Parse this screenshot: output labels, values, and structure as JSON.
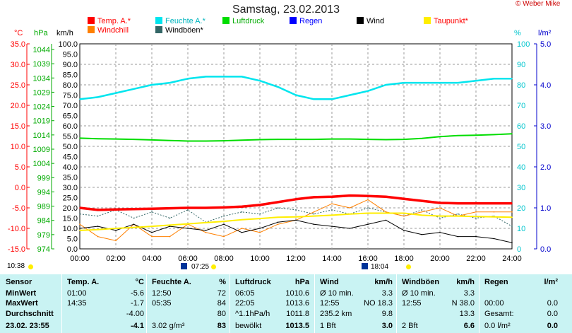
{
  "title": "Samstag, 23.02.2013",
  "copyright": "© Weber Mike",
  "colors": {
    "temp": "#ff0000",
    "humidity": "#00e5ee",
    "pressure": "#00dd00",
    "rain": "#0000ff",
    "wind": "#000000",
    "dewpoint": "#ffee00",
    "windchill": "#ff8000",
    "gust": "#336666",
    "grid": "#999999",
    "stats_bg": "#c9f3f3"
  },
  "legend": [
    {
      "label": "Temp. A.*",
      "color": "#ff0000"
    },
    {
      "label": "Feuchte A.*",
      "color": "#00e5ee"
    },
    {
      "label": "Luftdruck",
      "color": "#00dd00"
    },
    {
      "label": "Regen",
      "color": "#0000ff"
    },
    {
      "label": "Wind",
      "color": "#000000"
    },
    {
      "label": "Taupunkt*",
      "color": "#ffee00"
    },
    {
      "label": "Windchill",
      "color": "#ff8000"
    },
    {
      "label": "Windböen*",
      "color": "#336666"
    }
  ],
  "axes": {
    "temp": {
      "unit": "°C",
      "ticks": [
        "35.0",
        "30.0",
        "25.0",
        "20.0",
        "15.0",
        "10.0",
        "5.0",
        "0.0",
        "-5.0",
        "-10.0",
        "-15.0"
      ]
    },
    "pressure": {
      "unit": "hPa",
      "ticks": [
        "1044",
        "1039",
        "1034",
        "1029",
        "1024",
        "1019",
        "1014",
        "1009",
        "1004",
        "999",
        "994",
        "989",
        "984",
        "979",
        "974"
      ]
    },
    "wind": {
      "unit": "km/h",
      "ticks": [
        "100.0",
        "95.0",
        "90.0",
        "85.0",
        "80.0",
        "75.0",
        "70.0",
        "65.0",
        "60.0",
        "55.0",
        "50.0",
        "45.0",
        "40.0",
        "35.0",
        "30.0",
        "25.0",
        "20.0",
        "15.0",
        "10.0",
        "5.0",
        "0.0"
      ]
    },
    "humidity": {
      "unit": "%",
      "ticks": [
        "100",
        "90",
        "80",
        "70",
        "60",
        "50",
        "40",
        "30",
        "20",
        "10",
        "0"
      ]
    },
    "rain": {
      "unit": "l/m²",
      "ticks": [
        "5.0",
        "4.0",
        "3.0",
        "2.0",
        "1.0",
        "0.0"
      ]
    },
    "time": {
      "ticks": [
        "00:00",
        "02:00",
        "04:00",
        "06:00",
        "08:00",
        "10:00",
        "12:00",
        "14:00",
        "16:00",
        "18:00",
        "20:00",
        "22:00",
        "24:00"
      ]
    }
  },
  "sun": {
    "time_label": "10:38",
    "sunrise": "07:25",
    "sunset": "18:04",
    "marker_06": "06:00",
    "marker_16": "16:00"
  },
  "chart_data": {
    "type": "line",
    "x": [
      "00:00",
      "01:00",
      "02:00",
      "03:00",
      "04:00",
      "05:00",
      "06:00",
      "07:00",
      "08:00",
      "09:00",
      "10:00",
      "11:00",
      "12:00",
      "13:00",
      "14:00",
      "15:00",
      "16:00",
      "17:00",
      "18:00",
      "19:00",
      "20:00",
      "21:00",
      "22:00",
      "23:00",
      "24:00"
    ],
    "xlim": [
      "00:00",
      "24:00"
    ],
    "series": [
      {
        "name": "Temp. A.*",
        "axis": "temp",
        "values": [
          -5.0,
          -5.5,
          -5.4,
          -5.3,
          -5.2,
          -5.1,
          -5.0,
          -5.0,
          -4.9,
          -4.7,
          -4.3,
          -3.6,
          -2.9,
          -2.4,
          -2.3,
          -2.0,
          -2.1,
          -2.3,
          -2.8,
          -3.3,
          -3.8,
          -3.9,
          -3.9,
          -3.9,
          -3.9
        ]
      },
      {
        "name": "Feuchte A.*",
        "axis": "humidity",
        "values": [
          73,
          74,
          76,
          78,
          80,
          81,
          83,
          84,
          84,
          84,
          82,
          79,
          75,
          73,
          73,
          75,
          77,
          80,
          81,
          81,
          81,
          81,
          82,
          83,
          83
        ]
      },
      {
        "name": "Luftdruck",
        "axis": "pressure",
        "values": [
          1011.8,
          1011.6,
          1011.5,
          1011.4,
          1011.2,
          1011.0,
          1010.8,
          1010.8,
          1010.9,
          1011.1,
          1011.3,
          1011.4,
          1011.4,
          1011.4,
          1011.5,
          1011.5,
          1011.4,
          1011.3,
          1011.4,
          1011.7,
          1012.3,
          1012.7,
          1012.8,
          1013.0,
          1013.3
        ]
      },
      {
        "name": "Taupunkt*",
        "axis": "temp",
        "values": [
          -10.5,
          -10.3,
          -10.0,
          -9.8,
          -9.5,
          -9.2,
          -8.9,
          -8.6,
          -8.3,
          -7.9,
          -7.6,
          -7.3,
          -7.2,
          -7.0,
          -6.8,
          -6.5,
          -6.3,
          -6.3,
          -6.3,
          -6.8,
          -7.0,
          -7.0,
          -7.1,
          -7.2,
          -7.3
        ]
      },
      {
        "name": "Windchill",
        "axis": "temp",
        "values": [
          -9,
          -12,
          -13,
          -9,
          -12,
          -12,
          -9,
          -11,
          -12,
          -10,
          -11,
          -9,
          -8,
          -6,
          -4,
          -5,
          -3,
          -6,
          -7,
          -6,
          -5,
          -7,
          -6,
          -6,
          -6
        ]
      },
      {
        "name": "Wind",
        "axis": "wind",
        "values": [
          10,
          11,
          9,
          12,
          8,
          11,
          10,
          9,
          12,
          8,
          10,
          13,
          14,
          12,
          11,
          10,
          12,
          14,
          9,
          7,
          8,
          6,
          6,
          5,
          3
        ]
      },
      {
        "name": "Windböen*",
        "axis": "wind",
        "values": [
          17,
          16,
          19,
          15,
          18,
          15,
          19,
          13,
          16,
          18,
          17,
          20,
          19,
          17,
          19,
          17,
          20,
          18,
          16,
          19,
          15,
          17,
          15,
          16,
          11
        ]
      }
    ],
    "ylim": {
      "temp": [
        -15,
        35
      ],
      "humidity": [
        0,
        100
      ],
      "pressure": [
        974,
        1044
      ],
      "wind": [
        0,
        100
      ],
      "rain": [
        0,
        5
      ]
    }
  },
  "stats": {
    "headers": {
      "sensor": "Sensor",
      "temp": "Temp. A.",
      "temp_unit": "°C",
      "hum": "Feuchte A.",
      "hum_unit": "%",
      "press": "Luftdruck",
      "press_unit": "hPa",
      "wind": "Wind",
      "wind_unit": "km/h",
      "gust": "Windböen",
      "gust_unit": "km/h",
      "rain": "Regen",
      "rain_unit": "l/m²"
    },
    "row_labels": [
      "MinWert",
      "MaxWert",
      "Durchschnitt",
      "23.02. 23:55"
    ],
    "temp": [
      [
        "01:00",
        "-5.6"
      ],
      [
        "14:35",
        "-1.7"
      ],
      [
        "",
        "-4.00"
      ],
      [
        "",
        "-4.1"
      ]
    ],
    "hum": [
      [
        "12:50",
        "72"
      ],
      [
        "05:35",
        "84"
      ],
      [
        "",
        "80"
      ],
      [
        "3.02 g/m³",
        "83"
      ]
    ],
    "press": [
      [
        "06:05",
        "1010.6"
      ],
      [
        "22:05",
        "1013.6"
      ],
      [
        "^1.1hPa/h",
        "1011.8"
      ],
      [
        "bewölkt",
        "1013.5"
      ]
    ],
    "wind": [
      [
        "Ø 10 min.",
        "3.3"
      ],
      [
        "12:55",
        "NO 18.3"
      ],
      [
        "235.2 km",
        "9.8"
      ],
      [
        "1 Bft",
        "3.0"
      ]
    ],
    "gust": [
      [
        "Ø 10 min.",
        "3.3"
      ],
      [
        "12:55",
        "N 38.0"
      ],
      [
        "",
        "13.3"
      ],
      [
        "2 Bft",
        "6.6"
      ]
    ],
    "rain": [
      [
        "",
        ""
      ],
      [
        "00:00",
        "0.0"
      ],
      [
        "Gesamt:",
        "0.0"
      ],
      [
        "0.0 l/m²",
        "0.0"
      ]
    ]
  }
}
